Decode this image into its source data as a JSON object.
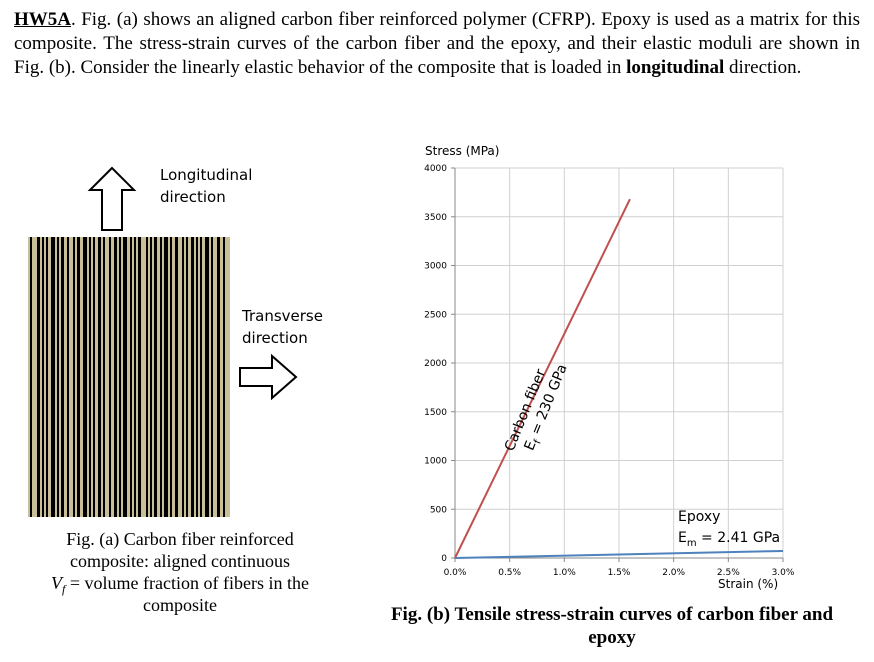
{
  "problem": {
    "label": "HW5A",
    "text1": ". Fig. (a) shows an aligned carbon fiber reinforced polymer (CFRP).  Epoxy is used as a matrix for this composite.  The stress-strain curves of the carbon fiber and the epoxy, and their elastic moduli are shown in Fig. (b). Consider the linearly elastic behavior of the composite that is loaded in ",
    "bold": "longitudinal",
    "text2": " direction."
  },
  "figure_a": {
    "longitudinal": "Longitudinal",
    "longitudinal2": "direction",
    "transverse": "Transverse",
    "transverse2": "direction",
    "caption1": "Fig. (a) Carbon fiber reinforced",
    "caption2": "composite: aligned continuous",
    "caption3_var": "V",
    "caption3_sub": "f",
    "caption3_rest": " = volume fraction of fibers in the",
    "caption4": "composite"
  },
  "chart_data": {
    "type": "line",
    "y_label": "Stress (MPa)",
    "x_label": "Strain (%)",
    "xlim": [
      0,
      3.0
    ],
    "ylim": [
      0,
      4000
    ],
    "xticks": [
      {
        "value": 0,
        "label": "0.0%"
      },
      {
        "value": 0.5,
        "label": "0.5%"
      },
      {
        "value": 1.0,
        "label": "1.0%"
      },
      {
        "value": 1.5,
        "label": "1.5%"
      },
      {
        "value": 2.0,
        "label": "2.0%"
      },
      {
        "value": 2.5,
        "label": "2.5%"
      },
      {
        "value": 3.0,
        "label": "3.0%"
      }
    ],
    "yticks": [
      0,
      500,
      1000,
      1500,
      2000,
      2500,
      3000,
      3500,
      4000
    ],
    "grid": true,
    "series": [
      {
        "name": "Carbon fiber",
        "color": "#c0504d",
        "x": [
          0,
          1.6
        ],
        "values": [
          0,
          3680
        ],
        "modulus": {
          "var": "E",
          "sub": "f",
          "rest": " = 230 GPa"
        }
      },
      {
        "name": "Epoxy",
        "color": "#4f81bd",
        "x": [
          0,
          3.0
        ],
        "values": [
          0,
          72
        ],
        "modulus": {
          "var": "E",
          "sub": "m",
          "rest": " = 2.41 GPa"
        }
      }
    ],
    "caption1": "Fig. (b) Tensile stress-strain curves of carbon fiber and",
    "caption2": "epoxy"
  }
}
